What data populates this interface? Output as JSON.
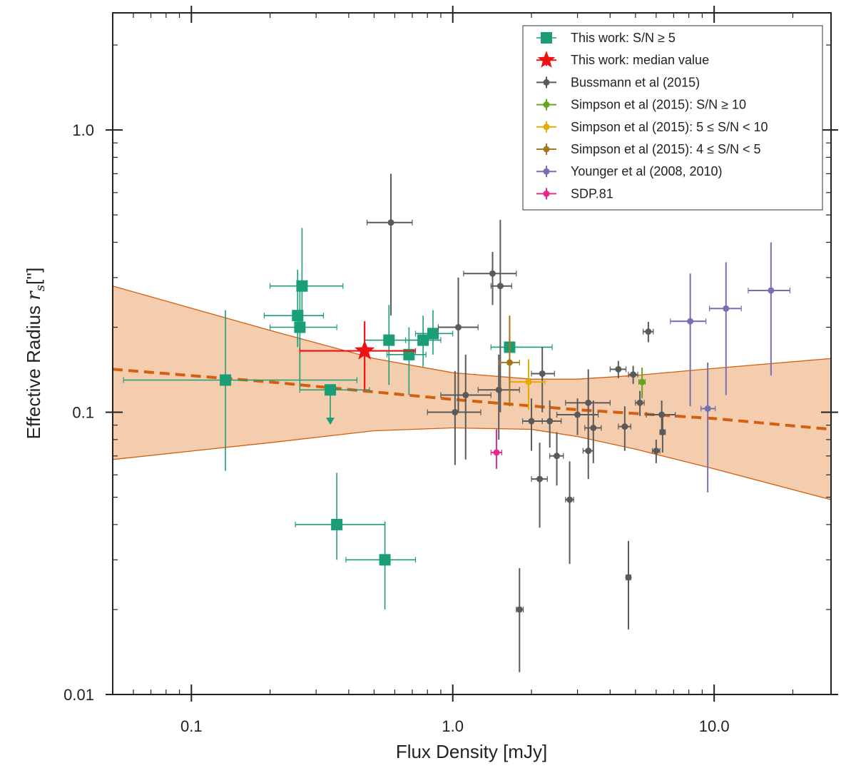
{
  "chart_data": {
    "type": "scatter",
    "xscale": "log",
    "yscale": "log",
    "xlim": [
      0.05,
      28
    ],
    "ylim": [
      0.01,
      2.6
    ],
    "xlabel": "Flux Density [mJy]",
    "ylabel_main": "Effective Radius ",
    "ylabel_math": "r",
    "ylabel_sub": "s",
    "ylabel_unit": "['']",
    "xticks": [
      {
        "value": 0.1,
        "label": "0.1"
      },
      {
        "value": 1.0,
        "label": "1.0"
      },
      {
        "value": 10.0,
        "label": "10.0"
      }
    ],
    "yticks": [
      {
        "value": 0.01,
        "label": "0.01"
      },
      {
        "value": 0.1,
        "label": "0.1"
      },
      {
        "value": 1.0,
        "label": "1.0"
      }
    ],
    "fit": {
      "name": "power-law fit",
      "color": "#d35f0f",
      "band_color": "#f3c8a6",
      "line": [
        [
          0.05,
          0.142
        ],
        [
          0.2,
          0.128
        ],
        [
          0.5,
          0.118
        ],
        [
          1.0,
          0.111
        ],
        [
          3.0,
          0.102
        ],
        [
          10.0,
          0.095
        ],
        [
          28.0,
          0.087
        ]
      ],
      "upper": [
        [
          0.05,
          0.28
        ],
        [
          0.2,
          0.195
        ],
        [
          0.5,
          0.155
        ],
        [
          1.0,
          0.138
        ],
        [
          2.0,
          0.131
        ],
        [
          3.0,
          0.131
        ],
        [
          5.0,
          0.135
        ],
        [
          10.0,
          0.143
        ],
        [
          28.0,
          0.155
        ]
      ],
      "lower": [
        [
          0.05,
          0.068
        ],
        [
          0.2,
          0.078
        ],
        [
          0.5,
          0.086
        ],
        [
          1.0,
          0.088
        ],
        [
          2.0,
          0.087
        ],
        [
          3.0,
          0.082
        ],
        [
          5.0,
          0.074
        ],
        [
          10.0,
          0.063
        ],
        [
          28.0,
          0.049
        ]
      ]
    },
    "series": [
      {
        "name": "This work: S/N ≥ 5",
        "color": "#1b9e77",
        "marker": "square",
        "points": [
          {
            "x": 0.135,
            "y": 0.13,
            "xlo": 0.055,
            "xhi": 0.43,
            "ylo": 0.062,
            "yhi": 0.23
          },
          {
            "x": 0.265,
            "y": 0.28,
            "xlo": 0.2,
            "xhi": 0.38,
            "ylo": 0.2,
            "yhi": 0.45
          },
          {
            "x": 0.255,
            "y": 0.22,
            "xlo": 0.19,
            "xhi": 0.32,
            "ylo": 0.17,
            "yhi": 0.32
          },
          {
            "x": 0.26,
            "y": 0.2,
            "xlo": 0.2,
            "xhi": 0.36,
            "ylo": 0.12,
            "yhi": 0.27
          },
          {
            "x": 0.34,
            "y": 0.12,
            "xlo": 0.26,
            "xhi": 0.48,
            "ylo": 0.105,
            "yhi": 0.12,
            "upper_limit": true
          },
          {
            "x": 0.36,
            "y": 0.04,
            "xlo": 0.25,
            "xhi": 0.55,
            "ylo": 0.03,
            "yhi": 0.061
          },
          {
            "x": 0.55,
            "y": 0.03,
            "xlo": 0.39,
            "xhi": 0.72,
            "ylo": 0.02,
            "yhi": 0.041
          },
          {
            "x": 0.57,
            "y": 0.18,
            "xlo": 0.46,
            "xhi": 0.74,
            "ylo": 0.125,
            "yhi": 0.24
          },
          {
            "x": 0.68,
            "y": 0.16,
            "xlo": 0.56,
            "xhi": 0.79,
            "ylo": 0.115,
            "yhi": 0.2
          },
          {
            "x": 0.77,
            "y": 0.18,
            "xlo": 0.66,
            "xhi": 0.9,
            "ylo": 0.145,
            "yhi": 0.22
          },
          {
            "x": 0.84,
            "y": 0.19,
            "xlo": 0.72,
            "xhi": 1.0,
            "ylo": 0.16,
            "yhi": 0.23
          },
          {
            "x": 1.65,
            "y": 0.17,
            "xlo": 1.4,
            "xhi": 2.4,
            "ylo": 0.14,
            "yhi": 0.21
          }
        ]
      },
      {
        "name": "This work: median value",
        "color": "#ee1111",
        "marker": "star",
        "points": [
          {
            "x": 0.46,
            "y": 0.165,
            "xlo": 0.26,
            "xhi": 0.72,
            "ylo": 0.12,
            "yhi": 0.21
          }
        ]
      },
      {
        "name": "Bussmann et al (2015)",
        "color": "#5a5a5a",
        "marker": "circle",
        "points": [
          {
            "x": 0.58,
            "y": 0.47,
            "xlo": 0.47,
            "xhi": 0.7,
            "ylo": 0.22,
            "yhi": 0.7
          },
          {
            "x": 1.05,
            "y": 0.2,
            "xlo": 0.88,
            "xhi": 1.25,
            "ylo": 0.1,
            "yhi": 0.3
          },
          {
            "x": 1.02,
            "y": 0.1,
            "xlo": 0.8,
            "xhi": 1.28,
            "ylo": 0.065,
            "yhi": 0.14
          },
          {
            "x": 1.12,
            "y": 0.115,
            "xlo": 0.9,
            "xhi": 1.4,
            "ylo": 0.068,
            "yhi": 0.16
          },
          {
            "x": 1.42,
            "y": 0.31,
            "xlo": 1.1,
            "xhi": 1.75,
            "ylo": 0.24,
            "yhi": 0.37
          },
          {
            "x": 1.52,
            "y": 0.28,
            "xlo": 1.4,
            "xhi": 1.68,
            "ylo": 0.1,
            "yhi": 0.48
          },
          {
            "x": 1.5,
            "y": 0.12,
            "xlo": 1.25,
            "xhi": 1.8,
            "ylo": 0.08,
            "yhi": 0.16
          },
          {
            "x": 1.8,
            "y": 0.02,
            "xlo": 1.75,
            "xhi": 1.86,
            "ylo": 0.012,
            "yhi": 0.028
          },
          {
            "x": 2.0,
            "y": 0.093,
            "xlo": 1.85,
            "xhi": 2.2,
            "ylo": 0.073,
            "yhi": 0.112
          },
          {
            "x": 2.15,
            "y": 0.058,
            "xlo": 2.0,
            "xhi": 2.3,
            "ylo": 0.039,
            "yhi": 0.078
          },
          {
            "x": 2.2,
            "y": 0.137,
            "xlo": 2.0,
            "xhi": 2.45,
            "ylo": 0.1,
            "yhi": 0.17
          },
          {
            "x": 2.35,
            "y": 0.093,
            "xlo": 2.2,
            "xhi": 2.6,
            "ylo": 0.075,
            "yhi": 0.11
          },
          {
            "x": 2.5,
            "y": 0.07,
            "xlo": 2.35,
            "xhi": 2.65,
            "ylo": 0.055,
            "yhi": 0.085
          },
          {
            "x": 2.8,
            "y": 0.049,
            "xlo": 2.7,
            "xhi": 2.9,
            "ylo": 0.029,
            "yhi": 0.067
          },
          {
            "x": 3.0,
            "y": 0.098,
            "xlo": 2.5,
            "xhi": 3.6,
            "ylo": 0.083,
            "yhi": 0.112
          },
          {
            "x": 3.3,
            "y": 0.108,
            "xlo": 2.7,
            "xhi": 4.0,
            "ylo": 0.073,
            "yhi": 0.142
          },
          {
            "x": 3.3,
            "y": 0.073,
            "xlo": 3.15,
            "xhi": 3.45,
            "ylo": 0.058,
            "yhi": 0.088
          },
          {
            "x": 3.45,
            "y": 0.088,
            "xlo": 3.2,
            "xhi": 3.7,
            "ylo": 0.066,
            "yhi": 0.11
          },
          {
            "x": 4.3,
            "y": 0.142,
            "xlo": 4.0,
            "xhi": 4.6,
            "ylo": 0.132,
            "yhi": 0.152
          },
          {
            "x": 4.55,
            "y": 0.089,
            "xlo": 4.3,
            "xhi": 4.8,
            "ylo": 0.073,
            "yhi": 0.105
          },
          {
            "x": 4.7,
            "y": 0.026,
            "xlo": 4.6,
            "xhi": 4.8,
            "ylo": 0.017,
            "yhi": 0.035
          },
          {
            "x": 4.9,
            "y": 0.136,
            "xlo": 4.7,
            "xhi": 5.1,
            "ylo": 0.126,
            "yhi": 0.146
          },
          {
            "x": 5.2,
            "y": 0.108,
            "xlo": 5.0,
            "xhi": 5.4,
            "ylo": 0.097,
            "yhi": 0.119
          },
          {
            "x": 5.6,
            "y": 0.193,
            "xlo": 5.35,
            "xhi": 5.85,
            "ylo": 0.177,
            "yhi": 0.209
          },
          {
            "x": 6.0,
            "y": 0.073,
            "xlo": 5.8,
            "xhi": 6.2,
            "ylo": 0.066,
            "yhi": 0.08
          },
          {
            "x": 6.3,
            "y": 0.098,
            "xlo": 5.5,
            "xhi": 7.1,
            "ylo": 0.084,
            "yhi": 0.11
          },
          {
            "x": 6.35,
            "y": 0.085,
            "xlo": 6.2,
            "xhi": 6.5,
            "ylo": 0.072,
            "yhi": 0.098
          }
        ]
      },
      {
        "name": "Simpson et al (2015): S/N ≥ 10",
        "color": "#66a61e",
        "marker": "circle",
        "points": [
          {
            "x": 5.3,
            "y": 0.128,
            "xlo": 5.15,
            "xhi": 5.45,
            "ylo": 0.112,
            "yhi": 0.144
          }
        ]
      },
      {
        "name": "Simpson et al (2015): 5 ≤ S/N < 10",
        "color": "#e6ab02",
        "marker": "circle",
        "points": [
          {
            "x": 1.95,
            "y": 0.128,
            "xlo": 1.65,
            "xhi": 2.25,
            "ylo": 0.102,
            "yhi": 0.154
          }
        ]
      },
      {
        "name": "Simpson et al (2015): 4 ≤ S/N < 5",
        "color": "#a6761d",
        "marker": "circle",
        "points": [
          {
            "x": 1.65,
            "y": 0.15,
            "xlo": 1.5,
            "xhi": 1.8,
            "ylo": 0.105,
            "yhi": 0.22
          }
        ]
      },
      {
        "name": "Younger et al (2008, 2010)",
        "color": "#7570b3",
        "marker": "circle",
        "points": [
          {
            "x": 8.1,
            "y": 0.21,
            "xlo": 6.8,
            "xhi": 9.3,
            "ylo": 0.105,
            "yhi": 0.31
          },
          {
            "x": 9.45,
            "y": 0.103,
            "xlo": 8.9,
            "xhi": 10.1,
            "ylo": 0.052,
            "yhi": 0.15
          },
          {
            "x": 11.1,
            "y": 0.233,
            "xlo": 9.6,
            "xhi": 12.7,
            "ylo": 0.115,
            "yhi": 0.34
          },
          {
            "x": 16.5,
            "y": 0.27,
            "xlo": 13.5,
            "xhi": 19.5,
            "ylo": 0.135,
            "yhi": 0.4
          }
        ]
      },
      {
        "name": "SDP.81",
        "color": "#e7298a",
        "marker": "circle",
        "points": [
          {
            "x": 1.47,
            "y": 0.072,
            "xlo": 1.4,
            "xhi": 1.54,
            "ylo": 0.063,
            "yhi": 0.087
          }
        ]
      }
    ],
    "legend_position": "top-right"
  }
}
